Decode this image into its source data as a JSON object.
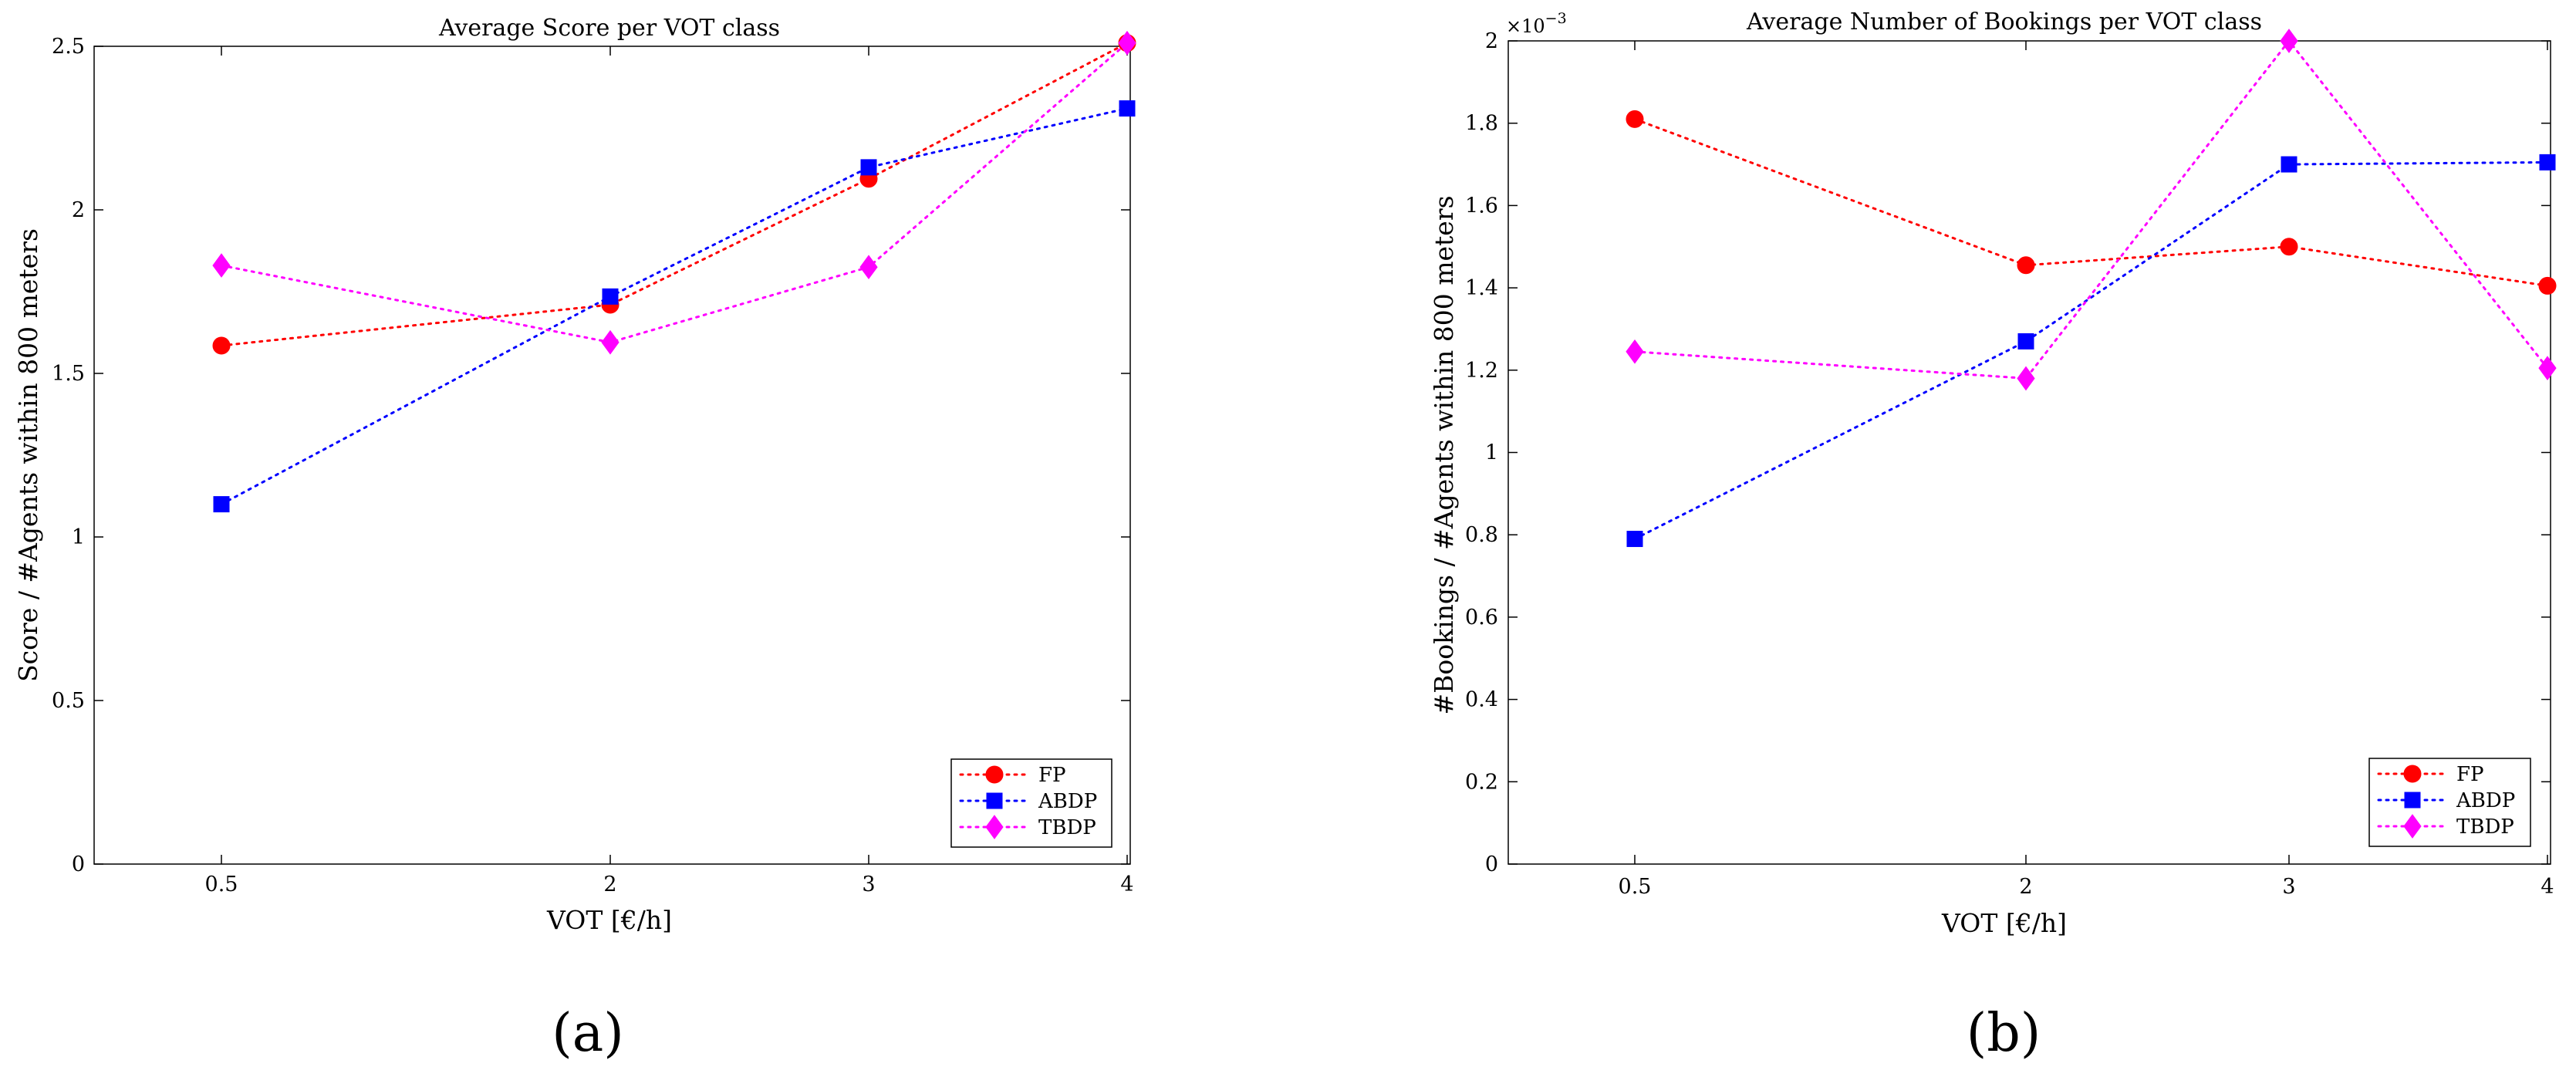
{
  "colors": {
    "FP": "#ff0000",
    "ABDP": "#0000ff",
    "TBDP": "#ff00ff",
    "axis": "#000000"
  },
  "captions": {
    "a": "(a)",
    "b": "(b)"
  },
  "chart_data": [
    {
      "type": "line",
      "title": "Average Score per VOT class",
      "xlabel": "VOT [€/h]",
      "ylabel": "Score / #Agents within 800 meters",
      "x": [
        0.5,
        2,
        3,
        4
      ],
      "x_tick_labels": [
        "0.5",
        "2",
        "3",
        "4"
      ],
      "ylim": [
        0,
        2.5
      ],
      "y_ticks": [
        0,
        0.5,
        1,
        1.5,
        2,
        2.5
      ],
      "y_tick_labels": [
        "0",
        "0.5",
        "1",
        "1.5",
        "2",
        "2.5"
      ],
      "y_exponent_label": "",
      "legend_position": "bottom-right",
      "series": [
        {
          "name": "FP",
          "values": [
            1.585,
            1.71,
            2.095,
            2.51
          ],
          "marker": "circle",
          "line": "dotted"
        },
        {
          "name": "ABDP",
          "values": [
            1.1,
            1.735,
            2.13,
            2.31
          ],
          "marker": "square",
          "line": "dotted"
        },
        {
          "name": "TBDP",
          "values": [
            1.83,
            1.595,
            1.825,
            2.51
          ],
          "marker": "diamond",
          "line": "dotted"
        }
      ]
    },
    {
      "type": "line",
      "title": "Average Number of Bookings per VOT class",
      "xlabel": "VOT [€/h]",
      "ylabel": "#Bookings / #Agents within 800 meters",
      "x": [
        0.5,
        2,
        3,
        4
      ],
      "x_tick_labels": [
        "0.5",
        "2",
        "3",
        "4"
      ],
      "ylim": [
        0,
        2.0
      ],
      "y_ticks": [
        0,
        0.2,
        0.4,
        0.6,
        0.8,
        1.0,
        1.2,
        1.4,
        1.6,
        1.8,
        2.0
      ],
      "y_tick_labels": [
        "0",
        "0.2",
        "0.4",
        "0.6",
        "0.8",
        "1",
        "1.2",
        "1.4",
        "1.6",
        "1.8",
        "2"
      ],
      "y_exponent_label": "×10",
      "y_exponent_power": "−3",
      "legend_position": "bottom-right",
      "series": [
        {
          "name": "FP",
          "values": [
            1.81,
            1.455,
            1.5,
            1.405
          ],
          "marker": "circle",
          "line": "dotted"
        },
        {
          "name": "ABDP",
          "values": [
            0.79,
            1.27,
            1.7,
            1.705
          ],
          "marker": "square",
          "line": "dotted"
        },
        {
          "name": "TBDP",
          "values": [
            1.245,
            1.18,
            2.0,
            1.205
          ],
          "marker": "diamond",
          "line": "dotted"
        }
      ]
    }
  ]
}
